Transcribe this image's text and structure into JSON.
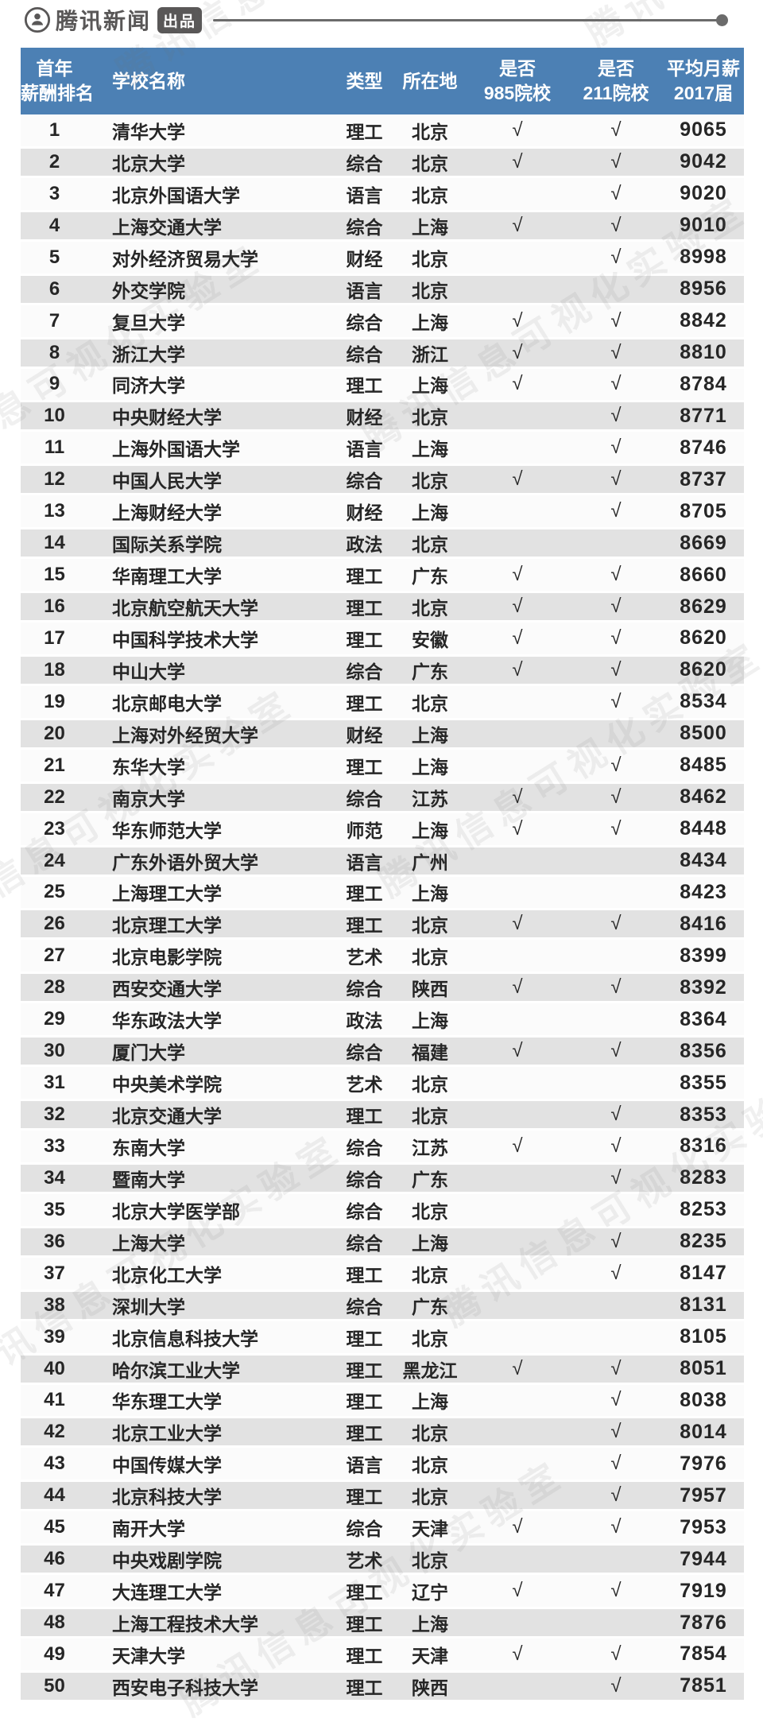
{
  "brand": {
    "icon": "tencent-news-logo-icon",
    "name": "腾讯新闻",
    "badge": "出品"
  },
  "watermark_text": "腾讯信息可视化实验室",
  "colors": {
    "header_bg": "#4c80b4",
    "header_text": "#ffffff",
    "row_stripe": "#e2e2e2",
    "row_plain": "#fbfbfb",
    "ink": "#262626",
    "brand_gray": "#595757"
  },
  "table_headers": {
    "rank": [
      "首年",
      "薪酬排名"
    ],
    "school": "学校名称",
    "type": "类型",
    "location": "所在地",
    "is985": [
      "是否",
      "985院校"
    ],
    "is211": [
      "是否",
      "211院校"
    ],
    "salary": [
      "平均月薪",
      "2017届"
    ]
  },
  "chart_data": {
    "type": "table",
    "columns": [
      "首年薪酬排名",
      "学校名称",
      "类型",
      "所在地",
      "是否985院校",
      "是否211院校",
      "平均月薪2017届"
    ],
    "check_mark": "√",
    "rows": [
      [
        1,
        "清华大学",
        "理工",
        "北京",
        "√",
        "√",
        9065
      ],
      [
        2,
        "北京大学",
        "综合",
        "北京",
        "√",
        "√",
        9042
      ],
      [
        3,
        "北京外国语大学",
        "语言",
        "北京",
        "",
        "√",
        9020
      ],
      [
        4,
        "上海交通大学",
        "综合",
        "上海",
        "√",
        "√",
        9010
      ],
      [
        5,
        "对外经济贸易大学",
        "财经",
        "北京",
        "",
        "√",
        8998
      ],
      [
        6,
        "外交学院",
        "语言",
        "北京",
        "",
        "",
        8956
      ],
      [
        7,
        "复旦大学",
        "综合",
        "上海",
        "√",
        "√",
        8842
      ],
      [
        8,
        "浙江大学",
        "综合",
        "浙江",
        "√",
        "√",
        8810
      ],
      [
        9,
        "同济大学",
        "理工",
        "上海",
        "√",
        "√",
        8784
      ],
      [
        10,
        "中央财经大学",
        "财经",
        "北京",
        "",
        "√",
        8771
      ],
      [
        11,
        "上海外国语大学",
        "语言",
        "上海",
        "",
        "√",
        8746
      ],
      [
        12,
        "中国人民大学",
        "综合",
        "北京",
        "√",
        "√",
        8737
      ],
      [
        13,
        "上海财经大学",
        "财经",
        "上海",
        "",
        "√",
        8705
      ],
      [
        14,
        "国际关系学院",
        "政法",
        "北京",
        "",
        "",
        8669
      ],
      [
        15,
        "华南理工大学",
        "理工",
        "广东",
        "√",
        "√",
        8660
      ],
      [
        16,
        "北京航空航天大学",
        "理工",
        "北京",
        "√",
        "√",
        8629
      ],
      [
        17,
        "中国科学技术大学",
        "理工",
        "安徽",
        "√",
        "√",
        8620
      ],
      [
        18,
        "中山大学",
        "综合",
        "广东",
        "√",
        "√",
        8620
      ],
      [
        19,
        "北京邮电大学",
        "理工",
        "北京",
        "",
        "√",
        8534
      ],
      [
        20,
        "上海对外经贸大学",
        "财经",
        "上海",
        "",
        "",
        8500
      ],
      [
        21,
        "东华大学",
        "理工",
        "上海",
        "",
        "√",
        8485
      ],
      [
        22,
        "南京大学",
        "综合",
        "江苏",
        "√",
        "√",
        8462
      ],
      [
        23,
        "华东师范大学",
        "师范",
        "上海",
        "√",
        "√",
        8448
      ],
      [
        24,
        "广东外语外贸大学",
        "语言",
        "广州",
        "",
        "",
        8434
      ],
      [
        25,
        "上海理工大学",
        "理工",
        "上海",
        "",
        "",
        8423
      ],
      [
        26,
        "北京理工大学",
        "理工",
        "北京",
        "√",
        "√",
        8416
      ],
      [
        27,
        "北京电影学院",
        "艺术",
        "北京",
        "",
        "",
        8399
      ],
      [
        28,
        "西安交通大学",
        "综合",
        "陕西",
        "√",
        "√",
        8392
      ],
      [
        29,
        "华东政法大学",
        "政法",
        "上海",
        "",
        "",
        8364
      ],
      [
        30,
        "厦门大学",
        "综合",
        "福建",
        "√",
        "√",
        8356
      ],
      [
        31,
        "中央美术学院",
        "艺术",
        "北京",
        "",
        "",
        8355
      ],
      [
        32,
        "北京交通大学",
        "理工",
        "北京",
        "",
        "√",
        8353
      ],
      [
        33,
        "东南大学",
        "综合",
        "江苏",
        "√",
        "√",
        8316
      ],
      [
        34,
        "暨南大学",
        "综合",
        "广东",
        "",
        "√",
        8283
      ],
      [
        35,
        "北京大学医学部",
        "综合",
        "北京",
        "",
        "",
        8253
      ],
      [
        36,
        "上海大学",
        "综合",
        "上海",
        "",
        "√",
        8235
      ],
      [
        37,
        "北京化工大学",
        "理工",
        "北京",
        "",
        "√",
        8147
      ],
      [
        38,
        "深圳大学",
        "综合",
        "广东",
        "",
        "",
        8131
      ],
      [
        39,
        "北京信息科技大学",
        "理工",
        "北京",
        "",
        "",
        8105
      ],
      [
        40,
        "哈尔滨工业大学",
        "理工",
        "黑龙江",
        "√",
        "√",
        8051
      ],
      [
        41,
        "华东理工大学",
        "理工",
        "上海",
        "",
        "√",
        8038
      ],
      [
        42,
        "北京工业大学",
        "理工",
        "北京",
        "",
        "√",
        8014
      ],
      [
        43,
        "中国传媒大学",
        "语言",
        "北京",
        "",
        "√",
        7976
      ],
      [
        44,
        "北京科技大学",
        "理工",
        "北京",
        "",
        "√",
        7957
      ],
      [
        45,
        "南开大学",
        "综合",
        "天津",
        "√",
        "√",
        7953
      ],
      [
        46,
        "中央戏剧学院",
        "艺术",
        "北京",
        "",
        "",
        7944
      ],
      [
        47,
        "大连理工大学",
        "理工",
        "辽宁",
        "√",
        "√",
        7919
      ],
      [
        48,
        "上海工程技术大学",
        "理工",
        "上海",
        "",
        "",
        7876
      ],
      [
        49,
        "天津大学",
        "理工",
        "天津",
        "√",
        "√",
        7854
      ],
      [
        50,
        "西安电子科技大学",
        "理工",
        "陕西",
        "",
        "√",
        7851
      ]
    ]
  }
}
